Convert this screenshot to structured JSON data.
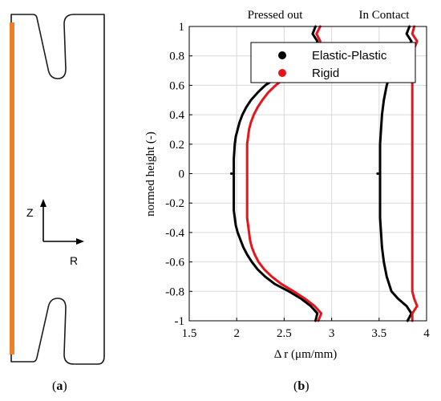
{
  "panel_a": {
    "caption_open": "(",
    "caption_letter": "a",
    "caption_close": ")",
    "axis_z": "Z",
    "axis_r": "R",
    "colors": {
      "outline": "#1a1a1a",
      "highlight": "#f07f2a"
    }
  },
  "panel_b": {
    "caption_open": "(",
    "caption_letter": "b",
    "caption_close": ")"
  },
  "chart_data": {
    "type": "line",
    "title": "",
    "annotations": [
      "Pressed out",
      "In Contact"
    ],
    "xlabel": "Δ r (μm/mm)",
    "ylabel": "normed height (-)",
    "xlim": [
      1.5,
      4
    ],
    "ylim": [
      -1,
      1
    ],
    "xticks": [
      "1.5",
      "2",
      "2.5",
      "3",
      "3.5",
      "4"
    ],
    "yticks": [
      "1",
      "0.8",
      "0.6",
      "0.4",
      "0.2",
      "0",
      "-0.2",
      "-0.4",
      "-0.6",
      "-0.8",
      "-1"
    ],
    "grid": true,
    "legend_position": "top-right",
    "legend": [
      {
        "name": "Elastic-Plastic",
        "color": "#000000"
      },
      {
        "name": "Rigid",
        "color": "#e8141b"
      }
    ],
    "series": [
      {
        "name": "Elastic-Plastic",
        "group": "Pressed out",
        "color": "#000000",
        "y": [
          -1,
          -0.95,
          -0.9,
          -0.85,
          -0.8,
          -0.75,
          -0.7,
          -0.65,
          -0.6,
          -0.55,
          -0.5,
          -0.45,
          -0.4,
          -0.35,
          -0.3,
          -0.25,
          -0.2,
          -0.1,
          0,
          0.1,
          0.2,
          0.25,
          0.3,
          0.35,
          0.4,
          0.45,
          0.5,
          0.55,
          0.6,
          0.65,
          0.7,
          0.75,
          0.8,
          0.85,
          0.9,
          0.95,
          1
        ],
        "x": [
          2.83,
          2.85,
          2.78,
          2.68,
          2.55,
          2.4,
          2.3,
          2.22,
          2.16,
          2.11,
          2.07,
          2.04,
          2.01,
          1.99,
          1.98,
          1.97,
          1.97,
          1.97,
          1.97,
          1.97,
          1.98,
          1.99,
          2.01,
          2.03,
          2.06,
          2.1,
          2.15,
          2.22,
          2.3,
          2.42,
          2.55,
          2.68,
          2.78,
          2.83,
          2.85,
          2.8,
          2.83
        ]
      },
      {
        "name": "Rigid",
        "group": "Pressed out",
        "color": "#e8141b",
        "y": [
          -1,
          -0.95,
          -0.9,
          -0.85,
          -0.8,
          -0.75,
          -0.7,
          -0.65,
          -0.6,
          -0.55,
          -0.5,
          -0.45,
          -0.4,
          -0.35,
          -0.3,
          -0.25,
          -0.2,
          -0.1,
          0,
          0.1,
          0.2,
          0.25,
          0.3,
          0.35,
          0.4,
          0.45,
          0.5,
          0.55,
          0.6,
          0.65,
          0.7,
          0.75,
          0.8,
          0.85,
          0.9,
          0.95,
          1
        ],
        "x": [
          2.86,
          2.89,
          2.82,
          2.72,
          2.6,
          2.47,
          2.37,
          2.29,
          2.23,
          2.19,
          2.16,
          2.14,
          2.13,
          2.12,
          2.11,
          2.11,
          2.11,
          2.11,
          2.11,
          2.11,
          2.11,
          2.12,
          2.13,
          2.15,
          2.18,
          2.22,
          2.27,
          2.33,
          2.41,
          2.51,
          2.61,
          2.72,
          2.8,
          2.85,
          2.88,
          2.84,
          2.88
        ]
      },
      {
        "name": "Elastic-Plastic",
        "group": "In Contact",
        "color": "#000000",
        "y": [
          -1,
          -0.95,
          -0.9,
          -0.85,
          -0.8,
          -0.7,
          -0.6,
          -0.5,
          -0.4,
          -0.3,
          -0.2,
          -0.1,
          0,
          0.1,
          0.2,
          0.3,
          0.4,
          0.5,
          0.6,
          0.7,
          0.8,
          0.85,
          0.9,
          0.95,
          1
        ],
        "x": [
          3.8,
          3.84,
          3.79,
          3.7,
          3.63,
          3.58,
          3.55,
          3.53,
          3.52,
          3.51,
          3.51,
          3.51,
          3.51,
          3.51,
          3.51,
          3.52,
          3.53,
          3.55,
          3.58,
          3.63,
          3.72,
          3.8,
          3.84,
          3.79,
          3.82
        ]
      },
      {
        "name": "Rigid",
        "group": "In Contact",
        "color": "#e8141b",
        "y": [
          -1,
          -0.95,
          -0.9,
          -0.85,
          -0.8,
          -0.6,
          -0.4,
          -0.2,
          0,
          0.2,
          0.4,
          0.6,
          0.8,
          0.85,
          0.9,
          0.95,
          1
        ],
        "x": [
          3.85,
          3.85,
          3.9,
          3.87,
          3.85,
          3.85,
          3.85,
          3.85,
          3.85,
          3.85,
          3.85,
          3.85,
          3.85,
          3.87,
          3.9,
          3.85,
          3.87
        ]
      }
    ]
  }
}
